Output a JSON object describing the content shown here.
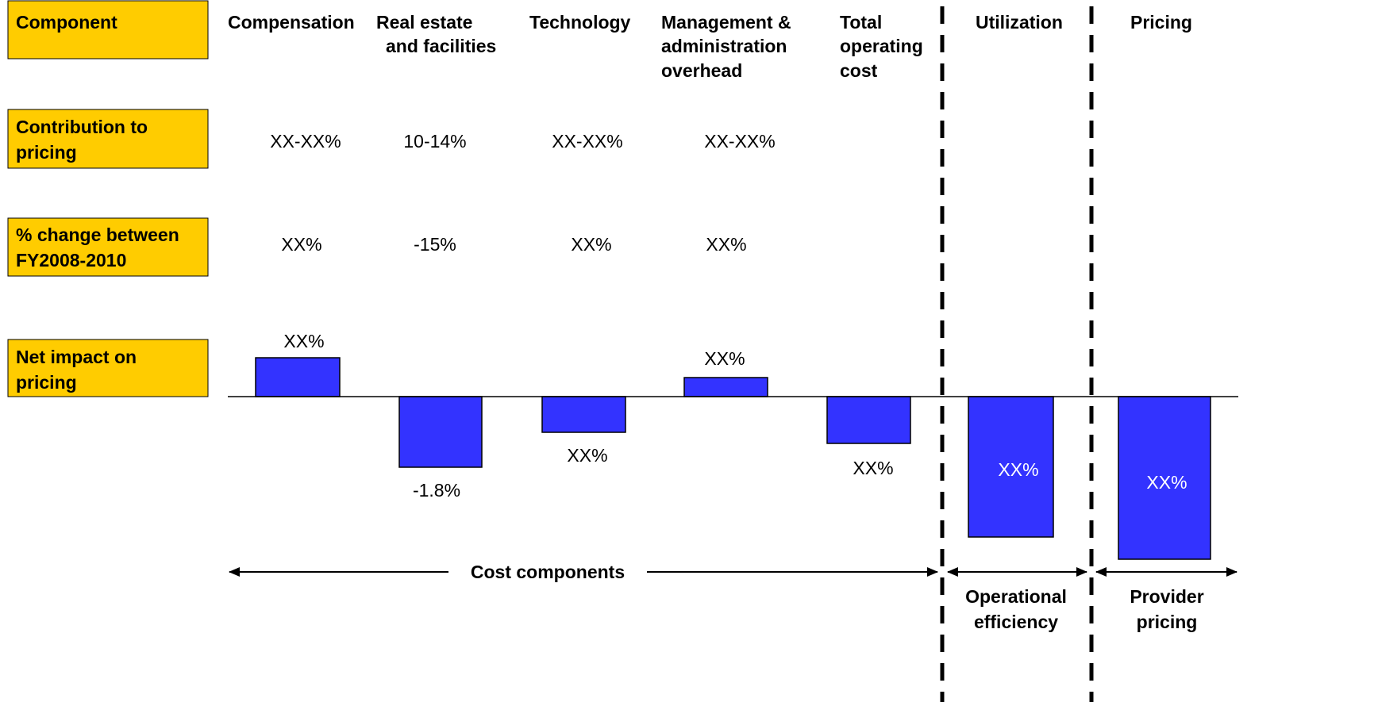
{
  "row_labels": [
    [
      "Component"
    ],
    [
      "Contribution to",
      "pricing"
    ],
    [
      "% change between",
      "FY2008-2010"
    ],
    [
      "Net impact on",
      "pricing"
    ]
  ],
  "columns": [
    {
      "header": [
        "Compensation"
      ],
      "contribution": "XX-XX%",
      "change": "XX%",
      "impact": "XX%"
    },
    {
      "header": [
        "Real estate",
        "and facilities"
      ],
      "contribution": "10-14%",
      "change": "-15%",
      "impact": "-1.8%"
    },
    {
      "header": [
        "Technology"
      ],
      "contribution": "XX-XX%",
      "change": "XX%",
      "impact": "XX%"
    },
    {
      "header": [
        "Management &",
        "administration",
        "overhead"
      ],
      "contribution": "XX-XX%",
      "change": "XX%",
      "impact": "XX%"
    },
    {
      "header": [
        "Total",
        "operating",
        "cost"
      ],
      "impact": "XX%"
    },
    {
      "header": [
        "Utilization"
      ],
      "impact": "XX%"
    },
    {
      "header": [
        "Pricing"
      ],
      "impact": "XX%"
    }
  ],
  "groups": [
    [
      "Cost components"
    ],
    [
      "Operational",
      "efficiency"
    ],
    [
      "Provider",
      "pricing"
    ]
  ]
}
